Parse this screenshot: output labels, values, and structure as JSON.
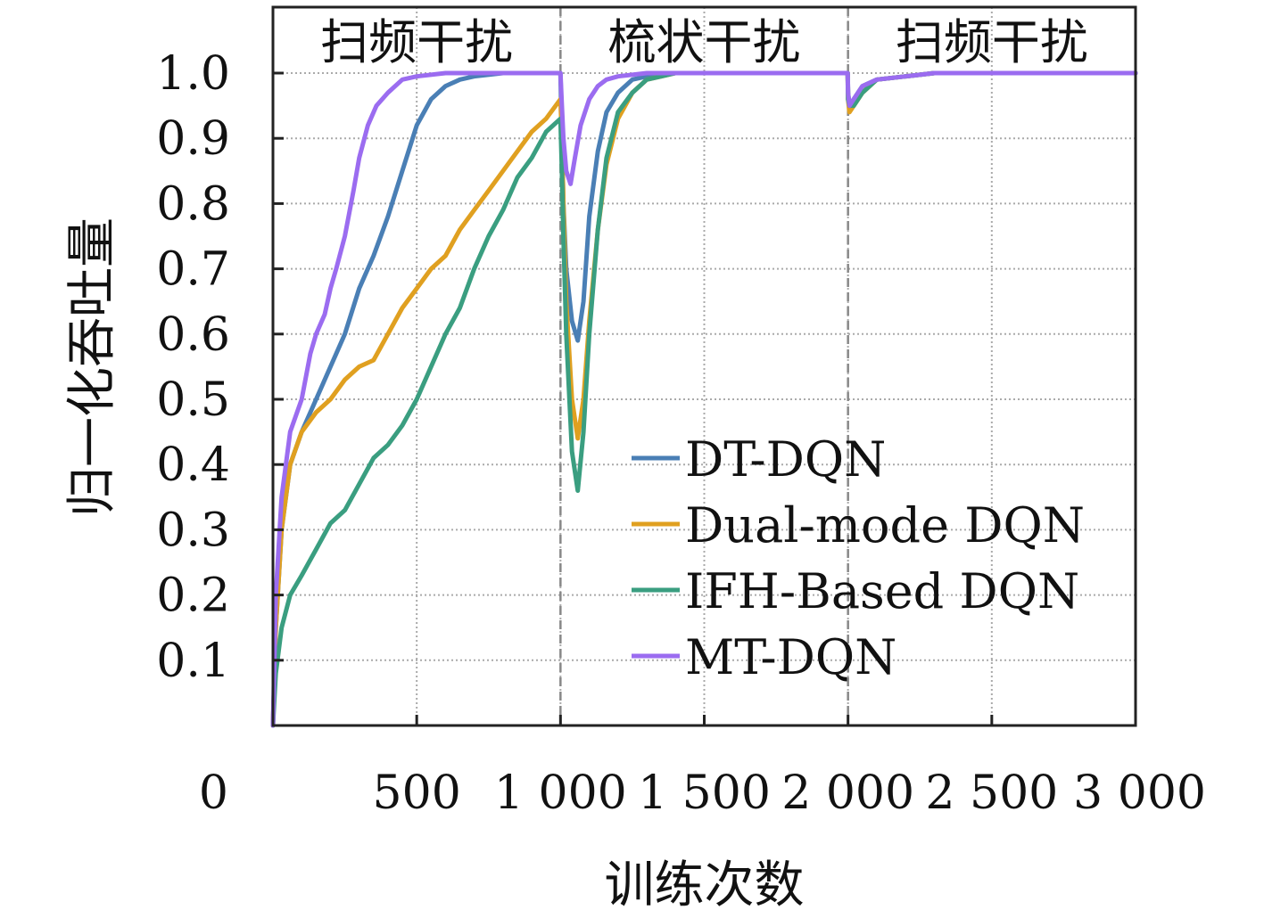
{
  "chart_data": {
    "type": "line",
    "xlabel": "训练次数",
    "ylabel": "归一化吞吐量",
    "xlim": [
      0,
      3000
    ],
    "ylim": [
      0,
      1.0
    ],
    "x_ticks": [
      0,
      500,
      1000,
      1500,
      2000,
      2500,
      3000
    ],
    "x_tick_labels": [
      "0",
      "500",
      "1 000",
      "1 500",
      "2 000",
      "2 500",
      "3 000"
    ],
    "y_ticks": [
      0.1,
      0.2,
      0.3,
      0.4,
      0.5,
      0.6,
      0.7,
      0.8,
      0.9,
      1.0
    ],
    "y_tick_labels": [
      "0.1",
      "0.2",
      "0.3",
      "0.4",
      "0.5",
      "0.6",
      "0.7",
      "0.8",
      "0.9",
      "1.0"
    ],
    "grid": true,
    "legend_position": "center-right",
    "regions": [
      {
        "label": "扫频干扰",
        "x_start": 0,
        "x_end": 1000
      },
      {
        "label": "梳状干扰",
        "x_start": 1000,
        "x_end": 2000
      },
      {
        "label": "扫频干扰",
        "x_start": 2000,
        "x_end": 3000
      }
    ],
    "boundaries": [
      1000,
      2000
    ],
    "series": [
      {
        "name": "DT-DQN",
        "color": "#4a7fb5",
        "x": [
          0,
          10,
          30,
          60,
          100,
          150,
          200,
          250,
          300,
          350,
          400,
          450,
          500,
          550,
          600,
          650,
          700,
          800,
          900,
          1000,
          1005,
          1010,
          1020,
          1040,
          1060,
          1080,
          1100,
          1130,
          1160,
          1200,
          1250,
          1300,
          1400,
          1500,
          1600,
          1800,
          1999,
          2000,
          2005,
          2020,
          2050,
          2100,
          2200,
          2300,
          2500,
          3000
        ],
        "y": [
          0.0,
          0.15,
          0.3,
          0.4,
          0.45,
          0.5,
          0.55,
          0.6,
          0.67,
          0.72,
          0.78,
          0.85,
          0.92,
          0.96,
          0.98,
          0.99,
          0.995,
          1.0,
          1.0,
          1.0,
          0.9,
          0.8,
          0.7,
          0.62,
          0.59,
          0.65,
          0.78,
          0.88,
          0.94,
          0.97,
          0.99,
          0.995,
          1.0,
          1.0,
          1.0,
          1.0,
          1.0,
          0.97,
          0.95,
          0.96,
          0.98,
          0.99,
          0.995,
          1.0,
          1.0,
          1.0
        ]
      },
      {
        "name": "Dual-mode DQN",
        "color": "#e0a020",
        "x": [
          0,
          10,
          30,
          60,
          100,
          150,
          200,
          250,
          300,
          350,
          400,
          450,
          500,
          550,
          600,
          650,
          700,
          750,
          800,
          850,
          900,
          950,
          1000,
          1005,
          1010,
          1020,
          1040,
          1060,
          1080,
          1100,
          1130,
          1160,
          1200,
          1250,
          1300,
          1350,
          1400,
          1500,
          1600,
          1800,
          1999,
          2000,
          2005,
          2020,
          2050,
          2100,
          2200,
          2300,
          2500,
          3000
        ],
        "y": [
          0.0,
          0.15,
          0.3,
          0.4,
          0.45,
          0.48,
          0.5,
          0.53,
          0.55,
          0.56,
          0.6,
          0.64,
          0.67,
          0.7,
          0.72,
          0.76,
          0.79,
          0.82,
          0.85,
          0.88,
          0.91,
          0.93,
          0.96,
          0.9,
          0.8,
          0.65,
          0.5,
          0.44,
          0.5,
          0.62,
          0.76,
          0.86,
          0.93,
          0.97,
          0.99,
          0.995,
          1.0,
          1.0,
          1.0,
          1.0,
          1.0,
          0.96,
          0.94,
          0.95,
          0.97,
          0.99,
          0.995,
          1.0,
          1.0,
          1.0
        ]
      },
      {
        "name": "IFH-Based DQN",
        "color": "#3a9e80",
        "x": [
          0,
          10,
          30,
          60,
          100,
          150,
          200,
          250,
          300,
          350,
          400,
          450,
          500,
          550,
          600,
          650,
          700,
          750,
          800,
          850,
          900,
          950,
          1000,
          1005,
          1010,
          1020,
          1040,
          1060,
          1080,
          1100,
          1130,
          1160,
          1200,
          1250,
          1300,
          1350,
          1400,
          1500,
          1600,
          1800,
          1999,
          2000,
          2005,
          2020,
          2050,
          2100,
          2200,
          2300,
          2500,
          3000
        ],
        "y": [
          0.0,
          0.08,
          0.15,
          0.2,
          0.23,
          0.27,
          0.31,
          0.33,
          0.37,
          0.41,
          0.43,
          0.46,
          0.5,
          0.55,
          0.6,
          0.64,
          0.7,
          0.75,
          0.79,
          0.84,
          0.87,
          0.91,
          0.93,
          0.85,
          0.75,
          0.6,
          0.42,
          0.36,
          0.45,
          0.6,
          0.76,
          0.87,
          0.94,
          0.97,
          0.99,
          0.995,
          1.0,
          1.0,
          1.0,
          1.0,
          1.0,
          0.96,
          0.95,
          0.95,
          0.97,
          0.99,
          0.995,
          1.0,
          1.0,
          1.0
        ]
      },
      {
        "name": "MT-DQN",
        "color": "#9b6cf0",
        "x": [
          0,
          10,
          30,
          60,
          100,
          130,
          150,
          180,
          200,
          220,
          250,
          280,
          300,
          330,
          360,
          400,
          450,
          500,
          600,
          700,
          800,
          1000,
          1005,
          1010,
          1020,
          1035,
          1050,
          1070,
          1100,
          1130,
          1160,
          1200,
          1300,
          1500,
          1800,
          1999,
          2000,
          2005,
          2020,
          2050,
          2100,
          2200,
          2300,
          2500,
          3000
        ],
        "y": [
          0.0,
          0.2,
          0.35,
          0.45,
          0.5,
          0.57,
          0.6,
          0.63,
          0.67,
          0.7,
          0.75,
          0.82,
          0.87,
          0.92,
          0.95,
          0.97,
          0.99,
          0.995,
          1.0,
          1.0,
          1.0,
          1.0,
          0.95,
          0.9,
          0.85,
          0.83,
          0.87,
          0.92,
          0.96,
          0.98,
          0.99,
          0.995,
          1.0,
          1.0,
          1.0,
          1.0,
          0.97,
          0.95,
          0.96,
          0.98,
          0.99,
          0.995,
          1.0,
          1.0,
          1.0
        ]
      }
    ]
  }
}
